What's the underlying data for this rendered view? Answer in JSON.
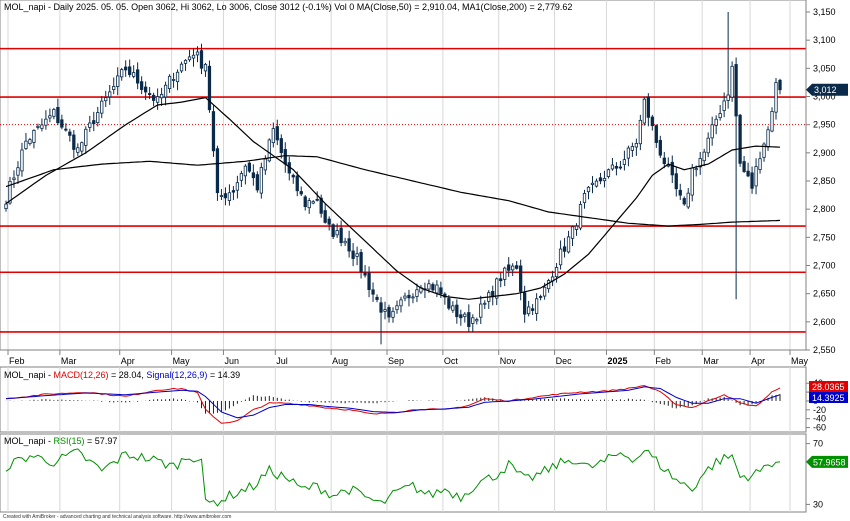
{
  "chart_data": [
    {
      "type": "candlestick",
      "title": "MOL_napi - Daily 2025. 05. 05. Open 3062, Hi 3062, Lo 3006, Close 3012 (-0.1%) Vol 0 MA(Close,50) = 2,910.04, MA1(Close,200) = 2,779.62",
      "ylim": [
        2550,
        3150
      ],
      "yticks": [
        "3,150",
        "3,100",
        "3,050",
        "3,000",
        "2,950",
        "2,900",
        "2,850",
        "2,800",
        "2,750",
        "2,700",
        "2,650",
        "2,600",
        "2,550"
      ],
      "x_months": [
        "Feb",
        "Mar",
        "Apr",
        "May",
        "Jun",
        "Jul",
        "Aug",
        "Sep",
        "Oct",
        "Nov",
        "Dec",
        "2025",
        "Feb",
        "Mar",
        "Apr",
        "May"
      ],
      "horizontal_lines": [
        3085,
        2999,
        2770,
        2688,
        2582
      ],
      "dotted_line": 2950,
      "last_close_label": "3,012",
      "price_waypoints": [
        [
          0,
          2820
        ],
        [
          5,
          2920
        ],
        [
          12,
          2970
        ],
        [
          18,
          2905
        ],
        [
          22,
          2960
        ],
        [
          26,
          3005
        ],
        [
          30,
          3050
        ],
        [
          34,
          3020
        ],
        [
          38,
          2990
        ],
        [
          42,
          3040
        ],
        [
          47,
          3080
        ],
        [
          49,
          3060
        ],
        [
          50,
          3060
        ],
        [
          53,
          2820
        ],
        [
          57,
          2835
        ],
        [
          60,
          2880
        ],
        [
          63,
          2840
        ],
        [
          67,
          2940
        ],
        [
          71,
          2860
        ],
        [
          75,
          2810
        ],
        [
          78,
          2820
        ],
        [
          80,
          2770
        ],
        [
          85,
          2745
        ],
        [
          88,
          2710
        ],
        [
          92,
          2650
        ],
        [
          96,
          2600
        ],
        [
          100,
          2640
        ],
        [
          104,
          2670
        ],
        [
          108,
          2660
        ],
        [
          112,
          2620
        ],
        [
          116,
          2600
        ],
        [
          120,
          2630
        ],
        [
          124,
          2680
        ],
        [
          128,
          2700
        ],
        [
          130,
          2620
        ],
        [
          134,
          2640
        ],
        [
          137,
          2690
        ],
        [
          139,
          2720
        ],
        [
          142,
          2760
        ],
        [
          145,
          2820
        ],
        [
          150,
          2860
        ],
        [
          154,
          2880
        ],
        [
          158,
          2920
        ],
        [
          160,
          2990
        ],
        [
          163,
          2920
        ],
        [
          167,
          2850
        ],
        [
          170,
          2800
        ],
        [
          172,
          2870
        ],
        [
          175,
          2900
        ],
        [
          178,
          2960
        ],
        [
          181,
          3010
        ],
        [
          182,
          3050
        ],
        [
          184,
          2880
        ],
        [
          187,
          2840
        ],
        [
          189,
          2900
        ],
        [
          191,
          2940
        ],
        [
          193,
          3020
        ],
        [
          194,
          3012
        ]
      ],
      "ma50_waypoints": [
        [
          0,
          2810
        ],
        [
          10,
          2860
        ],
        [
          20,
          2900
        ],
        [
          30,
          2950
        ],
        [
          38,
          2985
        ],
        [
          44,
          2990
        ],
        [
          50,
          2998
        ],
        [
          56,
          2960
        ],
        [
          62,
          2920
        ],
        [
          68,
          2890
        ],
        [
          72,
          2870
        ],
        [
          76,
          2840
        ],
        [
          80,
          2810
        ],
        [
          86,
          2770
        ],
        [
          92,
          2730
        ],
        [
          98,
          2690
        ],
        [
          104,
          2660
        ],
        [
          110,
          2645
        ],
        [
          116,
          2640
        ],
        [
          122,
          2645
        ],
        [
          128,
          2650
        ],
        [
          134,
          2660
        ],
        [
          140,
          2685
        ],
        [
          146,
          2720
        ],
        [
          152,
          2770
        ],
        [
          158,
          2820
        ],
        [
          162,
          2860
        ],
        [
          166,
          2880
        ],
        [
          170,
          2870
        ],
        [
          176,
          2880
        ],
        [
          182,
          2905
        ],
        [
          188,
          2912
        ],
        [
          194,
          2910
        ]
      ],
      "ma200_waypoints": [
        [
          0,
          2840
        ],
        [
          12,
          2870
        ],
        [
          24,
          2880
        ],
        [
          36,
          2885
        ],
        [
          48,
          2878
        ],
        [
          60,
          2885
        ],
        [
          70,
          2895
        ],
        [
          78,
          2893
        ],
        [
          90,
          2870
        ],
        [
          102,
          2850
        ],
        [
          114,
          2830
        ],
        [
          126,
          2815
        ],
        [
          136,
          2795
        ],
        [
          146,
          2785
        ],
        [
          156,
          2775
        ],
        [
          166,
          2770
        ],
        [
          174,
          2773
        ],
        [
          182,
          2777
        ],
        [
          190,
          2779
        ],
        [
          194,
          2780
        ]
      ]
    },
    {
      "type": "line",
      "title": "MOL_napi - MACD(12,26) = 28.04, Signal(12,26,9) = 14.39",
      "title_parts": [
        "MOL_napi - ",
        "MACD(12,26)",
        " = 28.04, ",
        "Signal(12,26,9)",
        " = 14.39"
      ],
      "ylim": [
        -70,
        45
      ],
      "yticks": [
        "40",
        "20",
        "0",
        "-20",
        "-40",
        "-60"
      ],
      "series": [
        {
          "name": "MACD(12,26)",
          "color": "#e00000",
          "waypoints": [
            [
              0,
              5
            ],
            [
              10,
              15
            ],
            [
              20,
              20
            ],
            [
              30,
              10
            ],
            [
              38,
              25
            ],
            [
              44,
              28
            ],
            [
              48,
              18
            ],
            [
              50,
              -20
            ],
            [
              54,
              -50
            ],
            [
              58,
              -45
            ],
            [
              62,
              -20
            ],
            [
              66,
              -5
            ],
            [
              70,
              -5
            ],
            [
              76,
              -10
            ],
            [
              80,
              -15
            ],
            [
              86,
              -20
            ],
            [
              92,
              -30
            ],
            [
              98,
              -25
            ],
            [
              104,
              -18
            ],
            [
              110,
              -20
            ],
            [
              116,
              -10
            ],
            [
              120,
              5
            ],
            [
              126,
              0
            ],
            [
              132,
              8
            ],
            [
              138,
              15
            ],
            [
              144,
              20
            ],
            [
              150,
              22
            ],
            [
              156,
              28
            ],
            [
              160,
              35
            ],
            [
              164,
              20
            ],
            [
              168,
              -8
            ],
            [
              172,
              -15
            ],
            [
              176,
              0
            ],
            [
              180,
              15
            ],
            [
              184,
              -5
            ],
            [
              188,
              -12
            ],
            [
              192,
              20
            ],
            [
              194,
              28
            ]
          ]
        },
        {
          "name": "Signal(12,26,9)",
          "color": "#0000cc",
          "waypoints": [
            [
              0,
              5
            ],
            [
              10,
              12
            ],
            [
              20,
              18
            ],
            [
              30,
              14
            ],
            [
              38,
              20
            ],
            [
              44,
              24
            ],
            [
              48,
              22
            ],
            [
              50,
              10
            ],
            [
              54,
              -25
            ],
            [
              58,
              -38
            ],
            [
              62,
              -32
            ],
            [
              66,
              -15
            ],
            [
              70,
              -8
            ],
            [
              76,
              -8
            ],
            [
              80,
              -12
            ],
            [
              86,
              -16
            ],
            [
              92,
              -24
            ],
            [
              98,
              -26
            ],
            [
              104,
              -20
            ],
            [
              110,
              -18
            ],
            [
              116,
              -14
            ],
            [
              120,
              -3
            ],
            [
              126,
              0
            ],
            [
              132,
              4
            ],
            [
              138,
              10
            ],
            [
              144,
              16
            ],
            [
              150,
              20
            ],
            [
              156,
              24
            ],
            [
              160,
              32
            ],
            [
              164,
              28
            ],
            [
              168,
              8
            ],
            [
              172,
              -5
            ],
            [
              176,
              -5
            ],
            [
              180,
              5
            ],
            [
              184,
              5
            ],
            [
              188,
              -5
            ],
            [
              192,
              8
            ],
            [
              194,
              14
            ]
          ]
        }
      ],
      "value_labels": [
        {
          "text": "28.0365",
          "color": "#e00000"
        },
        {
          "text": "14.3925",
          "color": "#0000cc"
        }
      ]
    },
    {
      "type": "line",
      "title": "MOL_napi - RSI(15) = 57.97",
      "title_parts": [
        "MOL_napi - ",
        "RSI(15)",
        " = 57.97"
      ],
      "ylim": [
        25,
        75
      ],
      "yticks": [
        "70",
        "30"
      ],
      "series": [
        {
          "name": "RSI(15)",
          "color": "#009000",
          "waypoints": [
            [
              0,
              55
            ],
            [
              6,
              62
            ],
            [
              12,
              58
            ],
            [
              18,
              64
            ],
            [
              24,
              52
            ],
            [
              30,
              63
            ],
            [
              36,
              60
            ],
            [
              42,
              55
            ],
            [
              46,
              62
            ],
            [
              49,
              60
            ],
            [
              50,
              30
            ],
            [
              54,
              33
            ],
            [
              58,
              38
            ],
            [
              62,
              42
            ],
            [
              66,
              52
            ],
            [
              70,
              48
            ],
            [
              74,
              40
            ],
            [
              78,
              42
            ],
            [
              82,
              36
            ],
            [
              86,
              40
            ],
            [
              90,
              35
            ],
            [
              94,
              30
            ],
            [
              98,
              38
            ],
            [
              102,
              42
            ],
            [
              106,
              36
            ],
            [
              110,
              40
            ],
            [
              114,
              35
            ],
            [
              118,
              44
            ],
            [
              122,
              48
            ],
            [
              126,
              56
            ],
            [
              130,
              46
            ],
            [
              134,
              50
            ],
            [
              138,
              56
            ],
            [
              142,
              60
            ],
            [
              146,
              54
            ],
            [
              150,
              58
            ],
            [
              154,
              64
            ],
            [
              158,
              60
            ],
            [
              160,
              66
            ],
            [
              164,
              56
            ],
            [
              168,
              46
            ],
            [
              172,
              40
            ],
            [
              174,
              48
            ],
            [
              178,
              58
            ],
            [
              182,
              62
            ],
            [
              184,
              48
            ],
            [
              188,
              50
            ],
            [
              192,
              58
            ],
            [
              194,
              57.97
            ]
          ]
        }
      ],
      "value_labels": [
        {
          "text": "57.9658",
          "color": "#009000"
        }
      ]
    }
  ],
  "footer": "Created with AmiBroker - advanced charting and technical analysis software. http://www.amibroker.com",
  "colors": {
    "bull": "#ffffff",
    "bear": "#0a2a4a",
    "hline": "#e00000",
    "ma": "#000000",
    "price_tag": "#0a2a4a"
  }
}
